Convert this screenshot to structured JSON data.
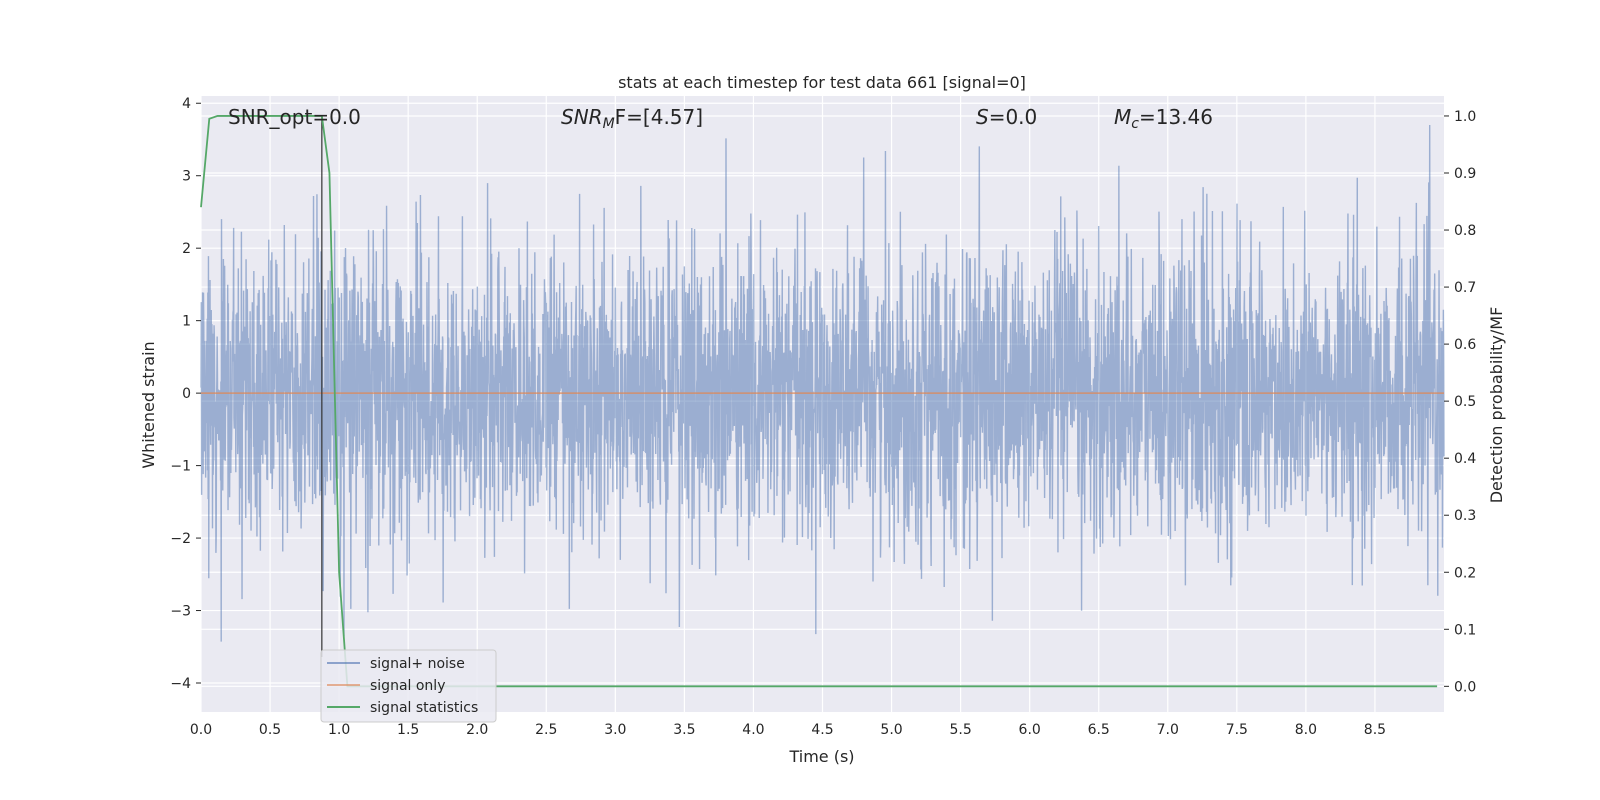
{
  "chart_data": {
    "type": "line",
    "title": "stats at each timestep for test data 661 [signal=0]",
    "xlabel": "Time (s)",
    "ylabel": "Whitened strain",
    "ylabel_right": "Detection probability/MF",
    "xlim": [
      0.0,
      9.0
    ],
    "ylim": [
      -4.4,
      4.1
    ],
    "ylim_right": [
      -0.045,
      1.035
    ],
    "x_ticks": [
      "0.0",
      "0.5",
      "1.0",
      "1.5",
      "2.0",
      "2.5",
      "3.0",
      "3.5",
      "4.0",
      "4.5",
      "5.0",
      "5.5",
      "6.0",
      "6.5",
      "7.0",
      "7.5",
      "8.0",
      "8.5"
    ],
    "y_ticks": [
      "−4",
      "−3",
      "−2",
      "−1",
      "0",
      "1",
      "2",
      "3",
      "4"
    ],
    "y_right_ticks": [
      "0.0",
      "0.1",
      "0.2",
      "0.3",
      "0.4",
      "0.5",
      "0.6",
      "0.7",
      "0.8",
      "0.9",
      "1.0"
    ],
    "grid": true,
    "vertical_marker_x": 0.875,
    "annotations": {
      "snr_opt": "SNR_opt=0.0",
      "snr_mf_prefix": "SNR",
      "snr_mf_sub": "M",
      "snr_mf_suffix": "F=[4.57]",
      "s_var": "S",
      "s_value": "=0.0",
      "mc_var": "M",
      "mc_sub": "c",
      "mc_value": "=13.46"
    },
    "series": [
      {
        "name": "signal+ noise",
        "color": "#4c72b0",
        "axis": "left",
        "description_samples": 4000,
        "typical_range": [
          -2.0,
          2.3
        ],
        "extreme_range": [
          -4.0,
          3.7
        ]
      },
      {
        "name": "signal only",
        "color": "#dd8452",
        "axis": "left",
        "x": [
          0.0,
          9.0
        ],
        "y": [
          0.0,
          0.0
        ]
      },
      {
        "name": "signal statistics",
        "color": "#55a868",
        "axis": "right",
        "x": [
          0.0,
          0.06,
          0.12,
          0.2,
          0.3,
          0.4,
          0.5,
          0.6,
          0.7,
          0.8,
          0.875,
          0.93,
          1.0,
          1.06,
          1.2,
          1.5,
          2.0,
          3.0,
          4.0,
          5.0,
          6.0,
          7.0,
          8.0,
          8.95
        ],
        "y": [
          0.84,
          0.995,
          1.0,
          1.0,
          1.0,
          1.0,
          1.0,
          1.0,
          1.0,
          1.0,
          1.0,
          0.9,
          0.2,
          0.0,
          0.0,
          0.0,
          0.0,
          0.0,
          0.0,
          0.0,
          0.0,
          0.0,
          0.0,
          0.0
        ]
      }
    ],
    "legend_position": "lower-left"
  }
}
